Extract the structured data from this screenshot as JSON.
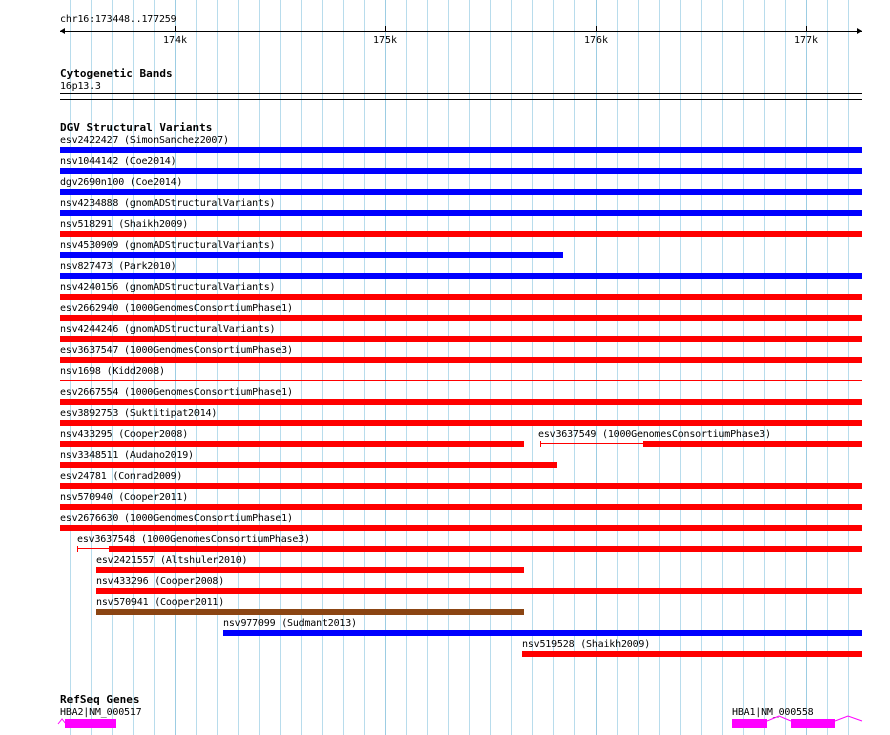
{
  "location": "chr16:173448..177259",
  "ruler_ticks": [
    "174k",
    "175k",
    "176k",
    "177k"
  ],
  "tracks": {
    "cyto": {
      "title": "Cytogenetic Bands",
      "band": "16p13.3"
    },
    "dgv": {
      "title": "DGV Structural Variants"
    },
    "refseq": {
      "title": "RefSeq Genes"
    }
  },
  "colors": {
    "gain": "#0000ff",
    "loss": "#ff0000",
    "complex": "#8b4513",
    "gene": "#ff00ff",
    "grid": "#b8dcec"
  },
  "variants": [
    {
      "label": "esv2422427 (SimonSanchez2007)",
      "type": "gain"
    },
    {
      "label": "nsv1044142 (Coe2014)",
      "type": "gain"
    },
    {
      "label": "dgv2690n100 (Coe2014)",
      "type": "gain"
    },
    {
      "label": "nsv4234888 (gnomADStructuralVariants)",
      "type": "gain"
    },
    {
      "label": "nsv518291 (Shaikh2009)",
      "type": "loss"
    },
    {
      "label": "nsv4530909 (gnomADStructuralVariants)",
      "type": "gain"
    },
    {
      "label": "nsv827473 (Park2010)",
      "type": "gain"
    },
    {
      "label": "nsv4240156 (gnomADStructuralVariants)",
      "type": "loss"
    },
    {
      "label": "esv2662940 (1000GenomesConsortiumPhase1)",
      "type": "loss"
    },
    {
      "label": "nsv4244246 (gnomADStructuralVariants)",
      "type": "loss"
    },
    {
      "label": "esv3637547 (1000GenomesConsortiumPhase3)",
      "type": "loss"
    },
    {
      "label": "nsv1698 (Kidd2008)",
      "type": "loss"
    },
    {
      "label": "esv2667554 (1000GenomesConsortiumPhase1)",
      "type": "loss"
    },
    {
      "label": "esv3892753 (Suktitipat2014)",
      "type": "loss"
    },
    {
      "label": "nsv433295 (Cooper2008)",
      "type": "loss"
    },
    {
      "label": "esv3637549 (1000GenomesConsortiumPhase3)",
      "type": "loss"
    },
    {
      "label": "nsv3348511 (Audano2019)",
      "type": "loss"
    },
    {
      "label": "esv24781 (Conrad2009)",
      "type": "loss"
    },
    {
      "label": "nsv570940 (Cooper2011)",
      "type": "loss"
    },
    {
      "label": "esv2676630 (1000GenomesConsortiumPhase1)",
      "type": "loss"
    },
    {
      "label": "esv3637548 (1000GenomesConsortiumPhase3)",
      "type": "loss"
    },
    {
      "label": "esv2421557 (Altshuler2010)",
      "type": "loss"
    },
    {
      "label": "nsv433296 (Cooper2008)",
      "type": "loss"
    },
    {
      "label": "nsv570941 (Cooper2011)",
      "type": "complex"
    },
    {
      "label": "nsv977099 (Sudmant2013)",
      "type": "gain"
    },
    {
      "label": "nsv519528 (Shaikh2009)",
      "type": "loss"
    }
  ],
  "genes": [
    {
      "label": "HBA2|NM_000517"
    },
    {
      "label": "HBA1|NM_000558"
    }
  ]
}
